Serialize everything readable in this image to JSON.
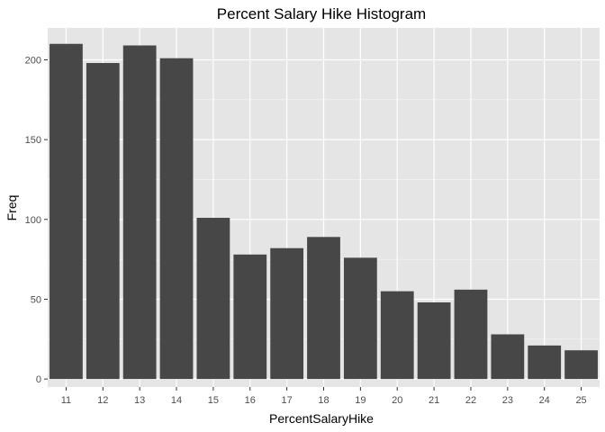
{
  "chart_data": {
    "type": "bar",
    "title": "Percent Salary Hike   Histogram",
    "xlabel": "PercentSalaryHike",
    "ylabel": "Freq",
    "categories": [
      "11",
      "12",
      "13",
      "14",
      "15",
      "16",
      "17",
      "18",
      "19",
      "20",
      "21",
      "22",
      "23",
      "24",
      "25"
    ],
    "values": [
      210,
      198,
      209,
      201,
      101,
      78,
      82,
      89,
      76,
      55,
      48,
      56,
      28,
      21,
      18
    ],
    "ylim": [
      -5,
      220
    ],
    "yticks": [
      0,
      50,
      100,
      150,
      200
    ],
    "grid": true,
    "colors": {
      "panel": "#e5e5e5",
      "grid_major": "#ffffff",
      "bar": "#474747",
      "tick_text": "#4d4d4d"
    }
  }
}
